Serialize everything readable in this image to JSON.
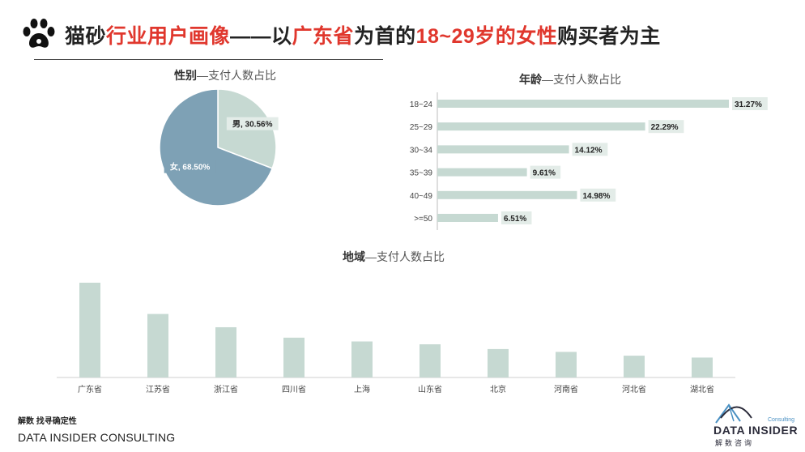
{
  "header": {
    "title_parts": [
      {
        "text": "猫砂",
        "highlight": false
      },
      {
        "text": "行业用户画像",
        "highlight": true
      },
      {
        "text": "——以",
        "highlight": false
      },
      {
        "text": "广东省",
        "highlight": true
      },
      {
        "text": "为首的",
        "highlight": false
      },
      {
        "text": "18~29岁的女性",
        "highlight": true
      },
      {
        "text": "购买者为主",
        "highlight": false
      }
    ]
  },
  "colors": {
    "highlight": "#e0372d",
    "pie_female": "#7ea1b5",
    "pie_male": "#c6d9d2",
    "bar": "#c6d9d2",
    "label_bg": "#e3ece8"
  },
  "chart_data": [
    {
      "id": "gender",
      "type": "pie",
      "title_bold": "性别",
      "title_rest": "—支付人数占比",
      "labels": [
        "男",
        "女"
      ],
      "values": [
        30.56,
        68.5
      ],
      "data_labels": [
        "男, 30.56%",
        "女, 68.50%"
      ]
    },
    {
      "id": "age",
      "type": "bar",
      "orientation": "horizontal",
      "title_bold": "年龄",
      "title_rest": "—支付人数占比",
      "categories": [
        "18~24",
        "25~29",
        "30~34",
        "35~39",
        "40~49",
        ">=50"
      ],
      "values": [
        31.27,
        22.29,
        14.12,
        9.61,
        14.98,
        6.51
      ],
      "data_labels": [
        "31.27%",
        "22.29%",
        "14.12%",
        "9.61%",
        "14.98%",
        "6.51%"
      ],
      "xlim": [
        0,
        31.27
      ]
    },
    {
      "id": "region",
      "type": "bar",
      "orientation": "vertical",
      "title_bold": "地域",
      "title_rest": "—支付人数占比",
      "categories": [
        "广东省",
        "江苏省",
        "浙江省",
        "四川省",
        "上海",
        "山东省",
        "北京",
        "河南省",
        "河北省",
        "湖北省"
      ],
      "values": [
        100,
        67,
        53,
        42,
        38,
        35,
        30,
        27,
        23,
        21
      ],
      "ylim": [
        0,
        100
      ]
    }
  ],
  "footer": {
    "tagline": "解数 找寻确定性",
    "company": "DATA INSIDER CONSULTING"
  },
  "logo": {
    "main": "DATA INSIDER",
    "sub": "解数咨询",
    "tag": "Consulting"
  }
}
